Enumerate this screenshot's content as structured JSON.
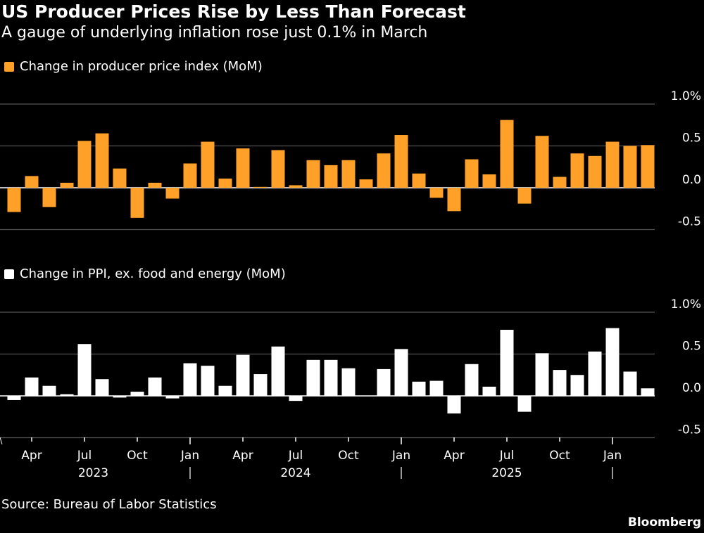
{
  "title": "US Producer Prices Rise by Less Than Forecast",
  "subtitle": "A gauge of underlying inflation rose just 0.1% in March",
  "source": "Source: Bureau of Labor Statistics",
  "brand": "Bloomberg",
  "colors": {
    "ppi": "#ffa028",
    "core": "#ffffff",
    "grid": "#555555"
  },
  "chart_data": [
    {
      "type": "bar",
      "series": [
        {
          "name": "Change in producer price index (MoM)",
          "values": [
            -0.29,
            0.14,
            -0.23,
            0.06,
            0.56,
            0.65,
            0.23,
            -0.36,
            0.06,
            -0.13,
            0.29,
            0.55,
            0.11,
            0.47,
            0.01,
            0.45,
            0.03,
            0.33,
            0.27,
            0.33,
            0.1,
            0.41,
            0.63,
            0.17,
            -0.12,
            -0.28,
            0.34,
            0.16,
            0.81,
            -0.19,
            0.62,
            0.13,
            0.41,
            0.38,
            0.55,
            0.5,
            0.51
          ]
        }
      ],
      "x_start": "Mar 2023",
      "x_end": "Mar 2026",
      "frequency": "monthly",
      "yticks": [
        "1.0%",
        "0.5",
        "0.0",
        "-0.5"
      ],
      "ylim": [
        -0.5,
        1.0
      ],
      "grid": true
    },
    {
      "type": "bar",
      "series": [
        {
          "name": "Change in PPI, ex. food and energy (MoM)",
          "values": [
            -0.05,
            0.22,
            0.12,
            0.02,
            0.62,
            0.2,
            -0.02,
            0.05,
            0.22,
            -0.03,
            0.39,
            0.36,
            0.12,
            0.49,
            0.26,
            0.59,
            -0.06,
            0.43,
            0.43,
            0.33,
            0.0,
            0.32,
            0.56,
            0.17,
            0.18,
            -0.21,
            0.38,
            0.11,
            0.79,
            -0.19,
            0.51,
            0.31,
            0.25,
            0.53,
            0.81,
            0.29,
            0.09
          ]
        }
      ],
      "x_start": "Mar 2023",
      "x_end": "Mar 2026",
      "frequency": "monthly",
      "yticks": [
        "1.0%",
        "0.5",
        "0.0",
        "-0.5"
      ],
      "ylim": [
        -0.5,
        1.0
      ],
      "grid": true,
      "xtick_labels": [
        {
          "label": "Apr",
          "index": 1
        },
        {
          "label": "Jul",
          "index": 4
        },
        {
          "label": "Oct",
          "index": 7
        },
        {
          "label": "Jan",
          "index": 10
        },
        {
          "label": "Apr",
          "index": 13
        },
        {
          "label": "Jul",
          "index": 16
        },
        {
          "label": "Oct",
          "index": 19
        },
        {
          "label": "Jan",
          "index": 22
        },
        {
          "label": "Apr",
          "index": 25
        },
        {
          "label": "Jul",
          "index": 28
        },
        {
          "label": "Oct",
          "index": 31
        },
        {
          "label": "Jan",
          "index": 34
        }
      ],
      "year_labels": [
        {
          "label": "2023",
          "index": 4.5
        },
        {
          "label": "2024",
          "index": 16
        },
        {
          "label": "2025",
          "index": 28
        }
      ],
      "year_separators": [
        10,
        22,
        34
      ]
    }
  ]
}
